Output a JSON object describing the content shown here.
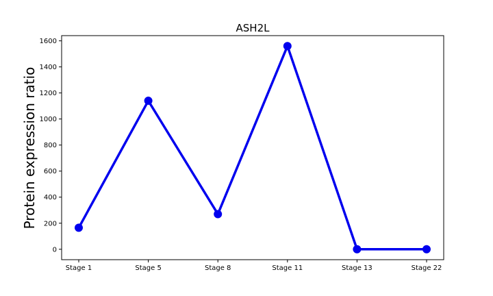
{
  "chart_data": {
    "type": "line",
    "title": "ASH2L",
    "xlabel": "",
    "ylabel": "Protein expression ratio",
    "categories": [
      "Stage 1",
      "Stage 5",
      "Stage 8",
      "Stage 11",
      "Stage 13",
      "Stage 22"
    ],
    "series": [
      {
        "values": [
          165,
          1140,
          270,
          1560,
          0,
          0
        ]
      }
    ],
    "ylim": [
      -80,
      1640
    ],
    "yticks": [
      0,
      200,
      400,
      600,
      800,
      1000,
      1200,
      1400,
      1600
    ],
    "grid": false,
    "line_color": "#0000ee"
  }
}
